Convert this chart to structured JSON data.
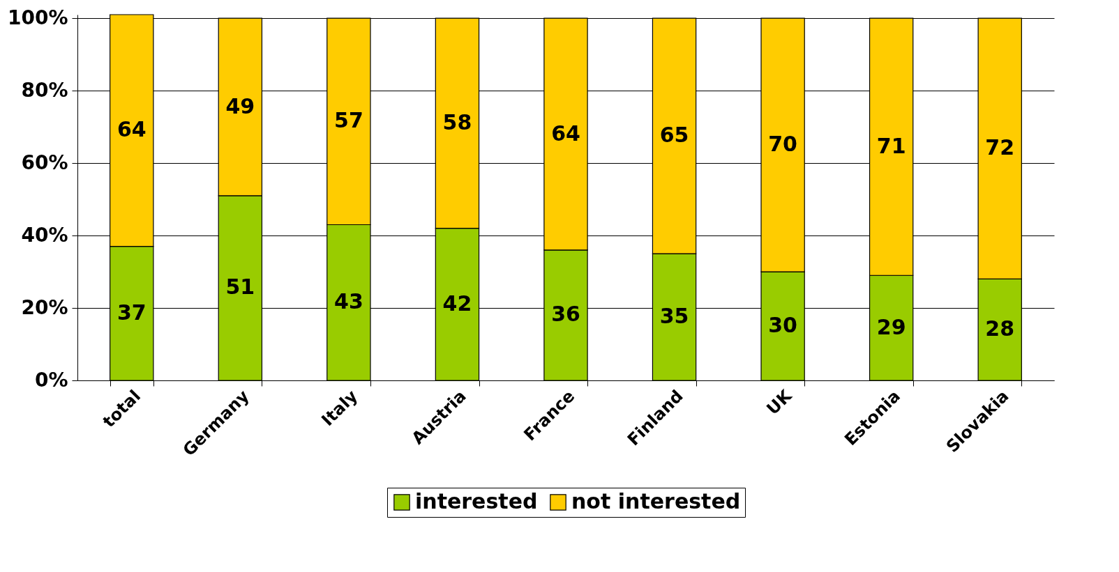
{
  "chart_data": {
    "type": "bar",
    "stacked": true,
    "categories": [
      "total",
      "Germany",
      "Italy",
      "Austria",
      "France",
      "Finland",
      "UK",
      "Estonia",
      "Slovakia"
    ],
    "series": [
      {
        "name": "interested",
        "color": "#99cc00",
        "values": [
          37,
          51,
          43,
          42,
          36,
          35,
          30,
          29,
          28
        ],
        "value_labels": [
          "37",
          "51",
          "43",
          "42",
          "36",
          "35",
          "30",
          "29",
          "28"
        ]
      },
      {
        "name": "not interested",
        "color": "#ffcc00",
        "values": [
          64,
          49,
          57,
          58,
          64,
          65,
          70,
          71,
          72
        ],
        "value_labels": [
          "64",
          "49",
          "57",
          "58",
          "64",
          "65",
          "70",
          "71",
          "72"
        ]
      }
    ],
    "ylim": [
      0,
      101
    ],
    "yticks": [
      {
        "value": 0,
        "label": "0%"
      },
      {
        "value": 20,
        "label": "20%"
      },
      {
        "value": 40,
        "label": "40%"
      },
      {
        "value": 60,
        "label": "60%"
      },
      {
        "value": 80,
        "label": "80%"
      },
      {
        "value": 100,
        "label": "100%"
      }
    ],
    "grid": "y",
    "legend": "bottom"
  }
}
